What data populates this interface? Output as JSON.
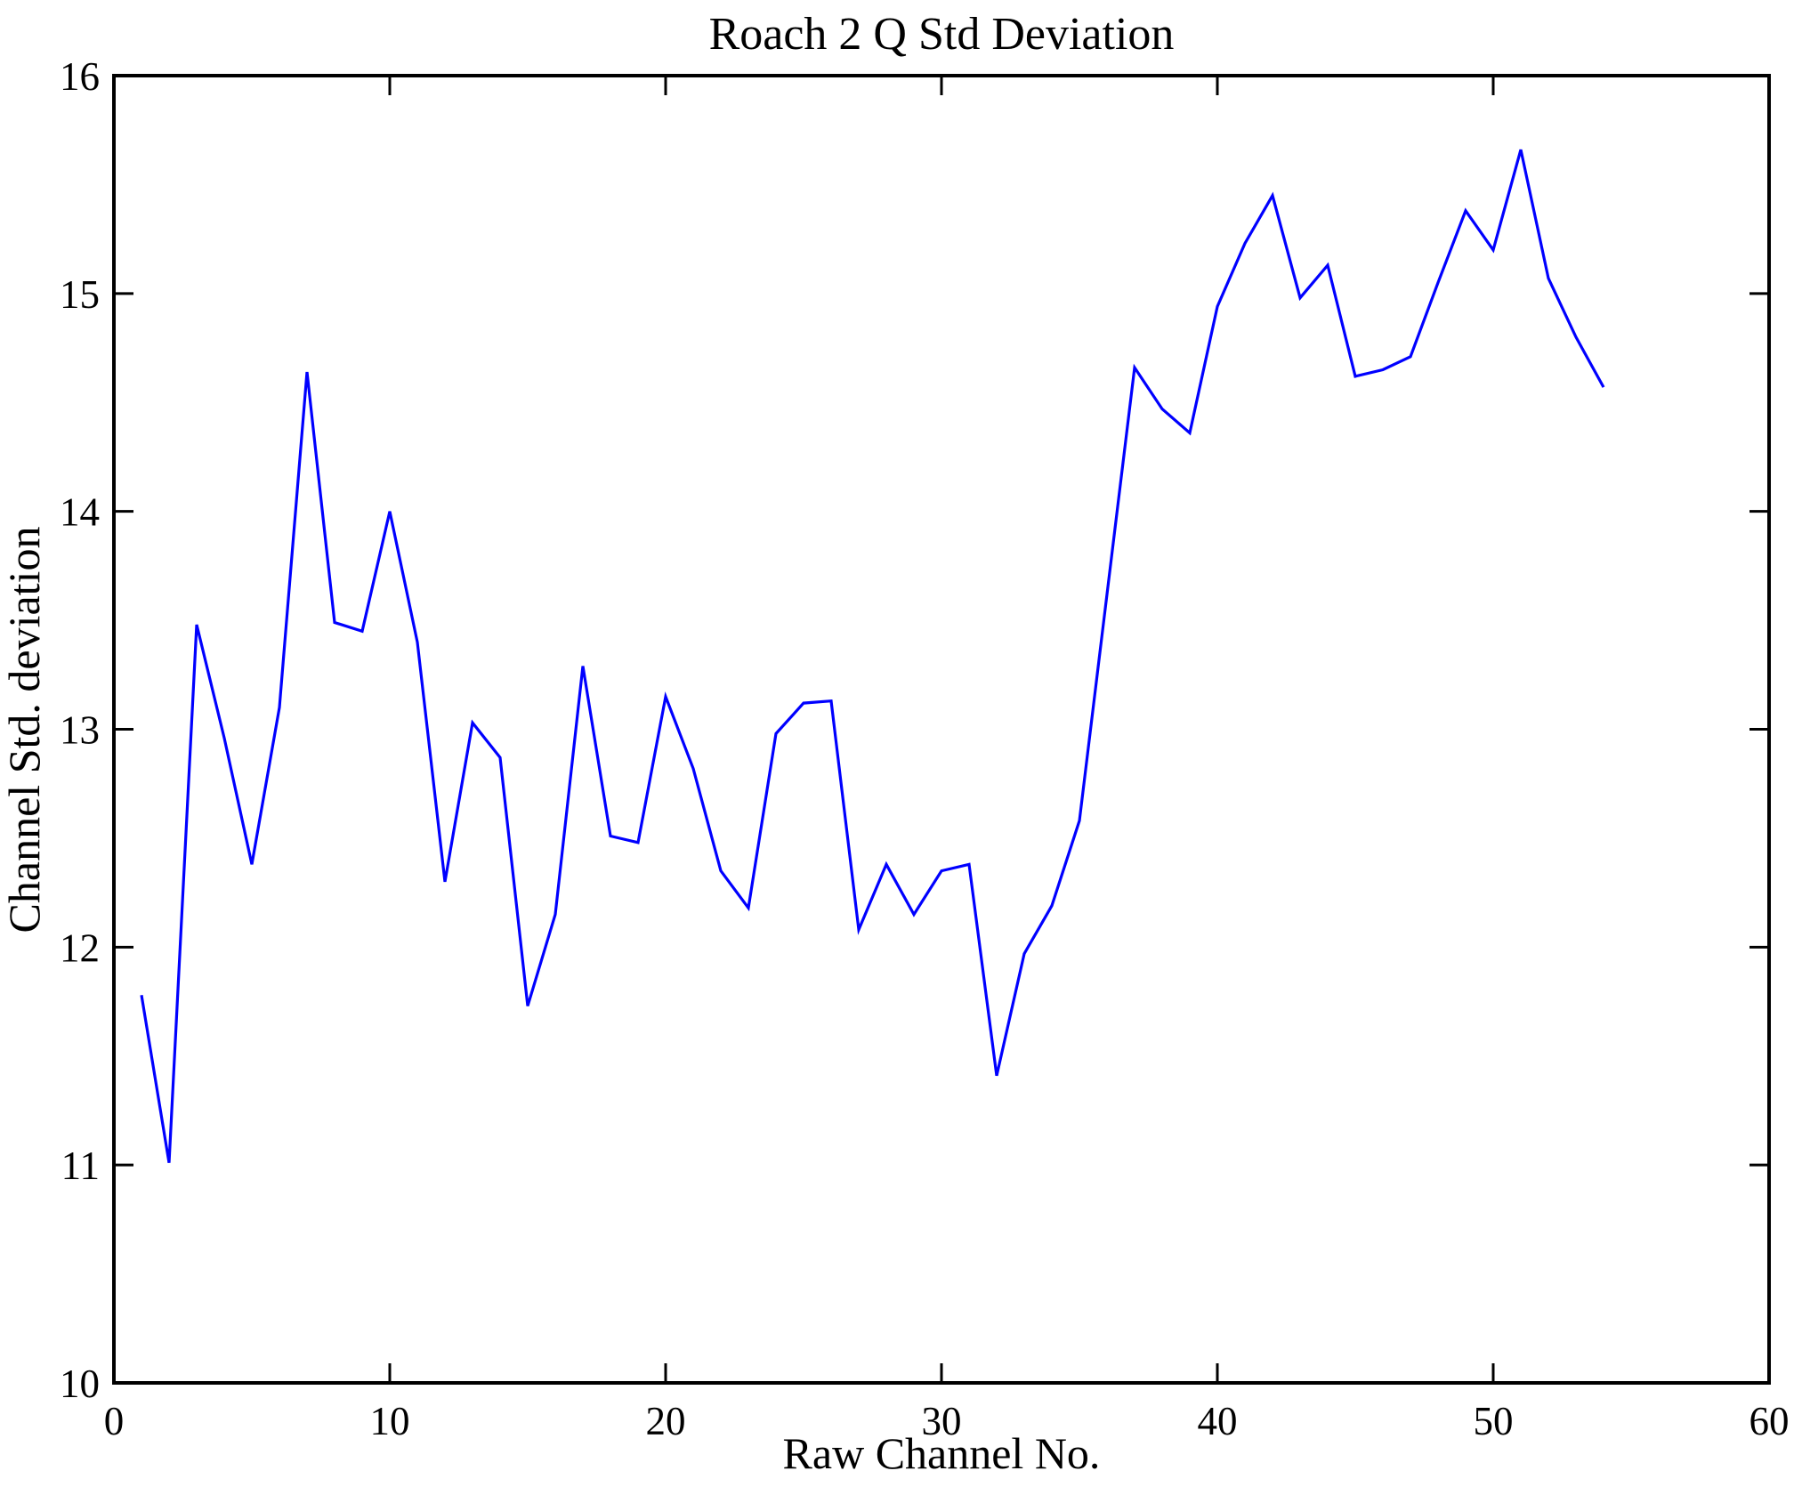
{
  "chart_data": {
    "type": "line",
    "title": "Roach 2 Q Std Deviation",
    "xlabel": "Raw Channel No.",
    "ylabel": "Channel Std. deviation",
    "xlim": [
      0,
      60
    ],
    "ylim": [
      10,
      16
    ],
    "x_ticks": [
      0,
      10,
      20,
      30,
      40,
      50,
      60
    ],
    "y_ticks": [
      10,
      11,
      12,
      13,
      14,
      15,
      16
    ],
    "grid": false,
    "legend": null,
    "box": true,
    "line_color": "#0000ff",
    "axis_color": "#000000",
    "background_color": "#ffffff",
    "series": [
      {
        "name": "channel-std-deviation",
        "x": [
          1,
          2,
          3,
          4,
          5,
          6,
          7,
          8,
          9,
          10,
          11,
          12,
          13,
          14,
          15,
          16,
          17,
          18,
          19,
          20,
          21,
          22,
          23,
          24,
          25,
          26,
          27,
          28,
          29,
          30,
          31,
          32,
          33,
          34,
          35,
          36,
          37,
          38,
          39,
          40,
          41,
          42,
          43,
          44,
          45,
          46,
          47,
          48,
          49,
          50,
          51,
          52,
          53,
          54
        ],
        "y": [
          11.78,
          11.01,
          13.48,
          12.96,
          12.38,
          13.1,
          14.64,
          13.49,
          13.45,
          14.0,
          13.4,
          12.3,
          13.03,
          12.87,
          11.73,
          12.15,
          13.29,
          12.51,
          12.48,
          13.15,
          12.82,
          12.35,
          12.18,
          12.98,
          13.12,
          13.13,
          12.08,
          12.38,
          12.15,
          12.35,
          12.38,
          11.41,
          11.97,
          12.19,
          12.58,
          13.62,
          14.66,
          14.47,
          14.36,
          14.94,
          15.23,
          15.45,
          14.98,
          15.13,
          14.62,
          14.65,
          14.71,
          15.05,
          15.38,
          15.2,
          15.66,
          15.07,
          14.8,
          14.57
        ]
      }
    ]
  }
}
